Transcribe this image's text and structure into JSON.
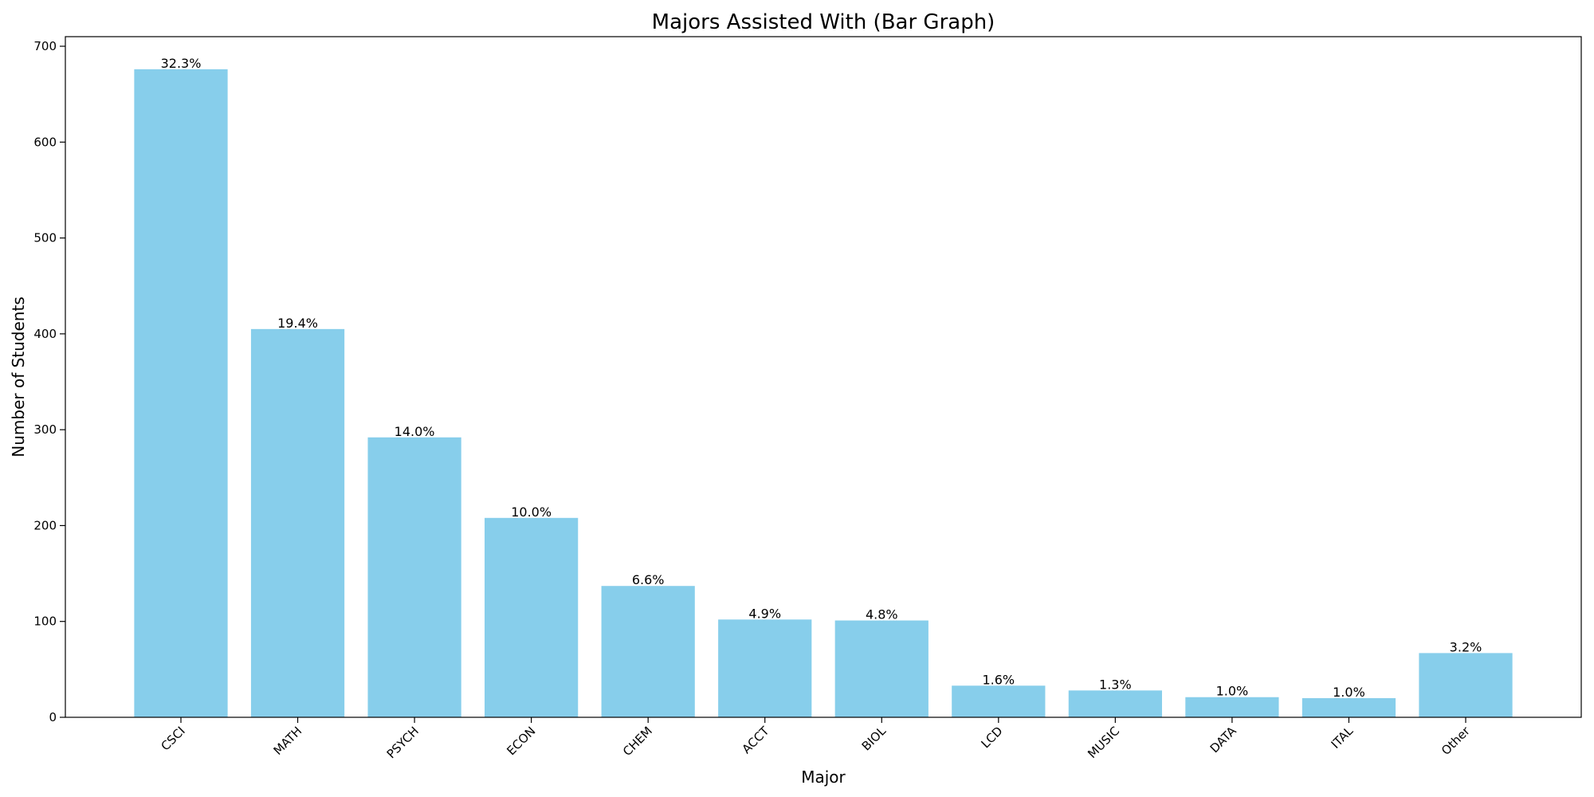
{
  "chart_data": {
    "type": "bar",
    "title": "Majors Assisted With (Bar Graph)",
    "xlabel": "Major",
    "ylabel": "Number of Students",
    "ylim": [
      0,
      710
    ],
    "yticks": [
      0,
      100,
      200,
      300,
      400,
      500,
      600,
      700
    ],
    "grid": false,
    "bar_color": "#87CEEB",
    "categories": [
      "CSCI",
      "MATH",
      "PSYCH",
      "ECON",
      "CHEM",
      "ACCT",
      "BIOL",
      "LCD",
      "MUSIC",
      "DATA",
      "ITAL",
      "Other"
    ],
    "values": [
      676,
      405,
      292,
      208,
      137,
      102,
      101,
      33,
      28,
      21,
      20,
      67
    ],
    "labels": [
      "32.3%",
      "19.4%",
      "14.0%",
      "10.0%",
      "6.6%",
      "4.9%",
      "4.8%",
      "1.6%",
      "1.3%",
      "1.0%",
      "1.0%",
      "3.2%"
    ]
  }
}
